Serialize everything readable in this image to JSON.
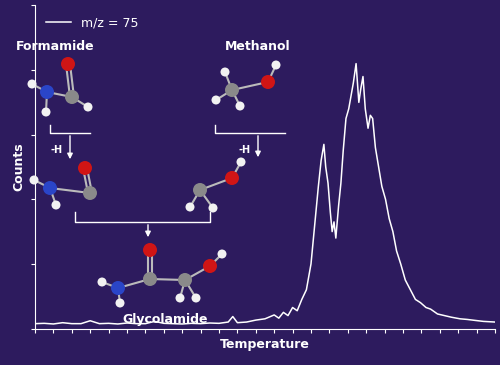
{
  "chart_data": {
    "type": "line",
    "xlabel": "Temperature",
    "ylabel": "Counts",
    "x": [
      0,
      2,
      4,
      6,
      8,
      10,
      12,
      14,
      16,
      18,
      20,
      22,
      24,
      26,
      28,
      30,
      32,
      34,
      36,
      38,
      40,
      42,
      43,
      44,
      46,
      48,
      50,
      52,
      53,
      54,
      55,
      56,
      57,
      58,
      59,
      60,
      61,
      61.6,
      62.2,
      62.8,
      63.2,
      63.7,
      64.2,
      64.6,
      65.0,
      65.4,
      66,
      66.5,
      67,
      67.6,
      68.2,
      68.7,
      69.2,
      69.8,
      70.4,
      70.8,
      71.3,
      71.8,
      72.4,
      72.9,
      73.4,
      74,
      74.7,
      75.4,
      76.2,
      77,
      77.8,
      78.6,
      79.5,
      80.5,
      81.6,
      82.7,
      83.8,
      85,
      86,
      87.5,
      89,
      90.5,
      92.4,
      94,
      95.7,
      97.5,
      100
    ],
    "series": [
      {
        "name": "m/z = 75",
        "color": "#ffffff",
        "values": [
          1.5,
          1.6,
          1.4,
          1.8,
          1.5,
          1.5,
          2.4,
          1.5,
          1.6,
          1.4,
          1.7,
          1.5,
          1.5,
          2.2,
          1.6,
          1.5,
          1.4,
          1.6,
          1.5,
          1.7,
          1.6,
          2.0,
          3.7,
          1.8,
          2.0,
          2.6,
          3.0,
          4.2,
          3.2,
          5.0,
          4.0,
          6.5,
          5.5,
          9.0,
          12.0,
          20.0,
          35,
          44,
          52,
          57,
          50,
          45,
          36,
          30,
          33,
          28,
          38,
          45,
          55,
          65,
          68,
          72,
          76,
          82,
          70,
          74,
          78,
          68,
          62,
          66,
          65,
          56,
          50,
          44,
          40,
          34,
          30,
          24,
          20,
          15,
          12,
          9,
          8,
          6.5,
          6,
          4.5,
          4,
          3.5,
          3,
          2.8,
          2.5,
          2.2,
          2
        ]
      }
    ],
    "xlim": [
      0,
      100
    ],
    "ylim": [
      0,
      100
    ],
    "xticks": [
      0,
      4,
      8,
      12,
      16,
      20,
      24,
      28,
      32,
      36,
      40,
      44,
      48,
      52,
      56,
      60,
      64,
      68,
      72,
      76,
      80,
      84,
      88,
      92,
      96,
      100
    ],
    "yticks": [
      0,
      20,
      40,
      60,
      80,
      100
    ],
    "tick_labels": false,
    "legend": "upper left"
  },
  "diagram": {
    "reactants": [
      {
        "label": "Formamide",
        "step": "-H"
      },
      {
        "label": "Methanol",
        "step": "-H"
      }
    ],
    "product": {
      "label": "Glycolamide"
    }
  }
}
